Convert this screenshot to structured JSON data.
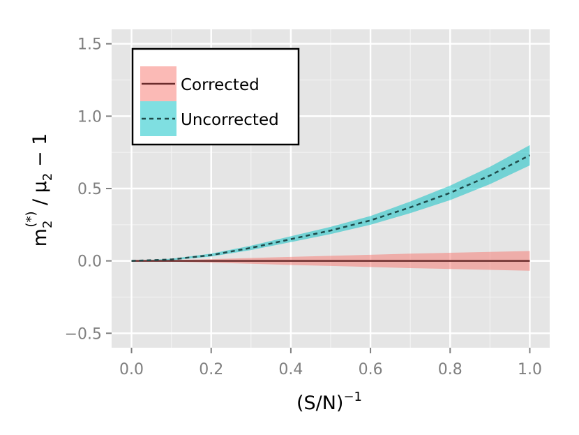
{
  "chart_data": {
    "type": "line",
    "xlabel": "(S/N)",
    "xlabel_superscript": "−1",
    "ylabel": {
      "base": "m",
      "sub1": "2",
      "sup1": "(*)",
      "mid": " / μ",
      "sub2": "2",
      "tail": " − 1"
    },
    "xlim": [
      -0.05,
      1.05
    ],
    "ylim": [
      -0.6,
      1.6
    ],
    "x_ticks": [
      0.0,
      0.2,
      0.4,
      0.6,
      0.8,
      1.0
    ],
    "x_tick_labels": [
      "0.0",
      "0.2",
      "0.4",
      "0.6",
      "0.8",
      "1.0"
    ],
    "y_ticks": [
      -0.5,
      0.0,
      0.5,
      1.0,
      1.5
    ],
    "y_tick_labels": [
      "−0.5",
      "0.0",
      "0.5",
      "1.0",
      "1.5"
    ],
    "grid": true,
    "legend_position": "top-left",
    "series": [
      {
        "name": "Corrected",
        "line_style": "solid",
        "line_color": "#6b2c2c",
        "band_color": "#f8766d",
        "x": [
          0.0,
          0.1,
          0.2,
          0.3,
          0.4,
          0.5,
          0.6,
          0.7,
          0.8,
          0.9,
          1.0
        ],
        "y": [
          0.0,
          0.0,
          0.0,
          0.0,
          0.0,
          0.0,
          0.0,
          0.0,
          0.0,
          0.0,
          0.0
        ],
        "lower": [
          0.0,
          -0.005,
          -0.012,
          -0.02,
          -0.028,
          -0.035,
          -0.042,
          -0.05,
          -0.056,
          -0.062,
          -0.068
        ],
        "upper": [
          0.0,
          0.005,
          0.012,
          0.02,
          0.028,
          0.035,
          0.042,
          0.05,
          0.056,
          0.062,
          0.068
        ]
      },
      {
        "name": "Uncorrected",
        "line_style": "dashed",
        "line_color": "#1e4a4a",
        "band_color": "#00bfc4",
        "x": [
          0.0,
          0.1,
          0.2,
          0.3,
          0.4,
          0.5,
          0.6,
          0.7,
          0.8,
          0.9,
          1.0
        ],
        "y": [
          0.0,
          0.01,
          0.04,
          0.09,
          0.15,
          0.21,
          0.28,
          0.37,
          0.47,
          0.59,
          0.73
        ],
        "lower": [
          0.0,
          0.005,
          0.03,
          0.075,
          0.13,
          0.185,
          0.25,
          0.33,
          0.42,
          0.53,
          0.66
        ],
        "upper": [
          0.0,
          0.015,
          0.05,
          0.105,
          0.17,
          0.235,
          0.31,
          0.41,
          0.52,
          0.65,
          0.8
        ]
      }
    ]
  }
}
